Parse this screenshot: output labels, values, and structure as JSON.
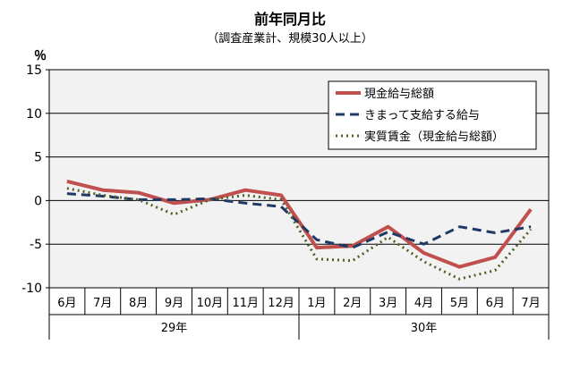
{
  "chart_data": {
    "type": "line",
    "title": "前年同月比",
    "subtitle": "（調査産業計、規模30人以上）",
    "ylabel": "％",
    "ylim": [
      -10,
      15
    ],
    "yticks": [
      15,
      10,
      5,
      0,
      -5,
      -10
    ],
    "grid": "horizontal",
    "legend_position": "top-right",
    "categories": [
      "6月",
      "7月",
      "8月",
      "9月",
      "10月",
      "11月",
      "12月",
      "1月",
      "2月",
      "3月",
      "4月",
      "5月",
      "6月",
      "7月"
    ],
    "groups": [
      {
        "label": "29年",
        "span": [
          0,
          6
        ]
      },
      {
        "label": "30年",
        "span": [
          7,
          13
        ]
      }
    ],
    "series": [
      {
        "name": "現金給与総額",
        "color": "#c0504d",
        "style": "solid",
        "values": [
          2.2,
          1.2,
          0.9,
          -0.3,
          0.1,
          1.2,
          0.6,
          -5.4,
          -5.2,
          -3.0,
          -6.0,
          -7.6,
          -6.5,
          -1.0
        ]
      },
      {
        "name": "きまって支給する給与",
        "color": "#1f3864",
        "style": "dashed",
        "values": [
          0.8,
          0.5,
          0.1,
          0.1,
          0.2,
          -0.3,
          -0.7,
          -4.5,
          -5.4,
          -3.6,
          -5.0,
          -3.0,
          -3.7,
          -3.0
        ]
      },
      {
        "name": "実質賃金（現金給与総額）",
        "color": "#4f6228",
        "style": "dotted",
        "values": [
          1.4,
          0.6,
          0.1,
          -1.6,
          0.1,
          0.6,
          0.1,
          -6.7,
          -6.9,
          -4.2,
          -7.0,
          -9.0,
          -8.0,
          -3.3
        ]
      }
    ]
  }
}
